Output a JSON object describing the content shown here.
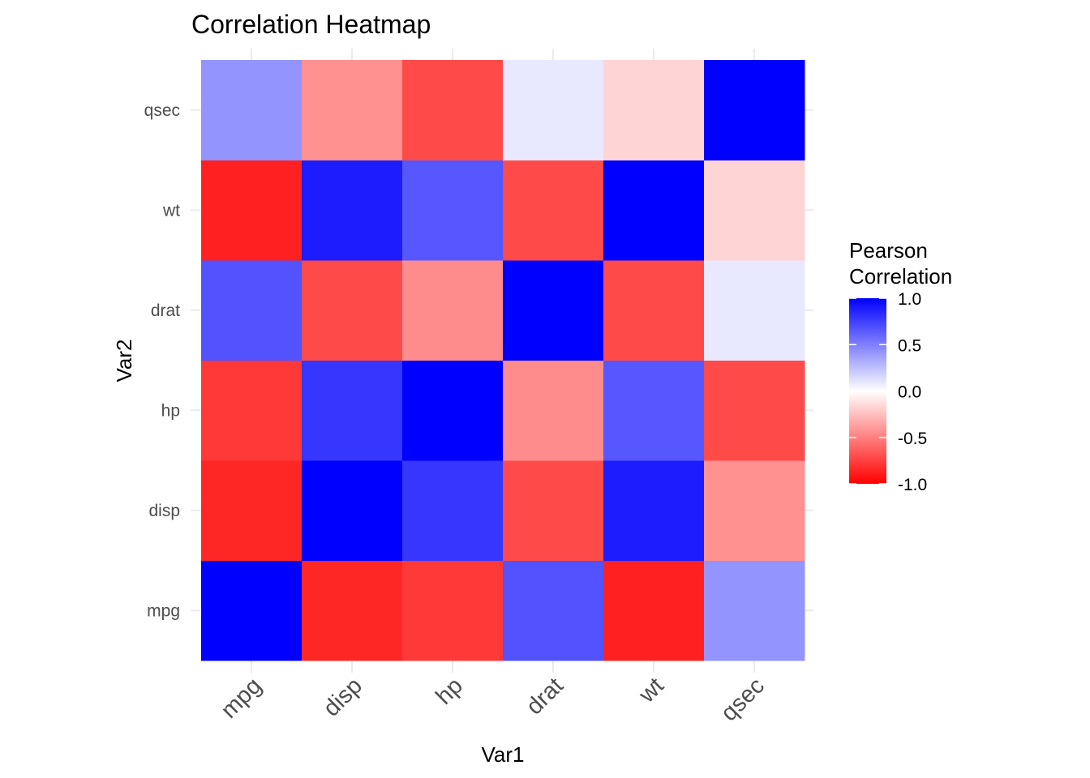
{
  "chart_data": {
    "type": "heatmap",
    "title": "Correlation Heatmap",
    "xlabel": "Var1",
    "ylabel": "Var2",
    "x": [
      "mpg",
      "disp",
      "hp",
      "drat",
      "wt",
      "qsec"
    ],
    "y": [
      "mpg",
      "disp",
      "hp",
      "drat",
      "wt",
      "qsec"
    ],
    "values": [
      [
        1.0,
        -0.85,
        -0.78,
        0.68,
        -0.87,
        0.42
      ],
      [
        -0.85,
        1.0,
        0.79,
        -0.71,
        0.89,
        -0.43
      ],
      [
        -0.78,
        0.79,
        1.0,
        -0.45,
        0.66,
        -0.71
      ],
      [
        0.68,
        -0.71,
        -0.45,
        1.0,
        -0.71,
        0.09
      ],
      [
        -0.87,
        0.89,
        0.66,
        -0.71,
        1.0,
        -0.17
      ],
      [
        0.42,
        -0.43,
        -0.71,
        0.09,
        -0.17,
        1.0
      ]
    ],
    "legend": {
      "title_lines": [
        "Pearson",
        "Correlation"
      ],
      "ticks": [
        1.0,
        0.5,
        0.0,
        -0.5,
        -1.0
      ],
      "tick_labels": [
        "1.0",
        "0.5",
        "0.0",
        "-0.5",
        "-1.0"
      ],
      "range": [
        -1,
        1
      ],
      "position": "right"
    },
    "colors": {
      "low": "#ff0000",
      "mid": "#ffffff",
      "high": "#0000ff"
    },
    "grid": true
  }
}
